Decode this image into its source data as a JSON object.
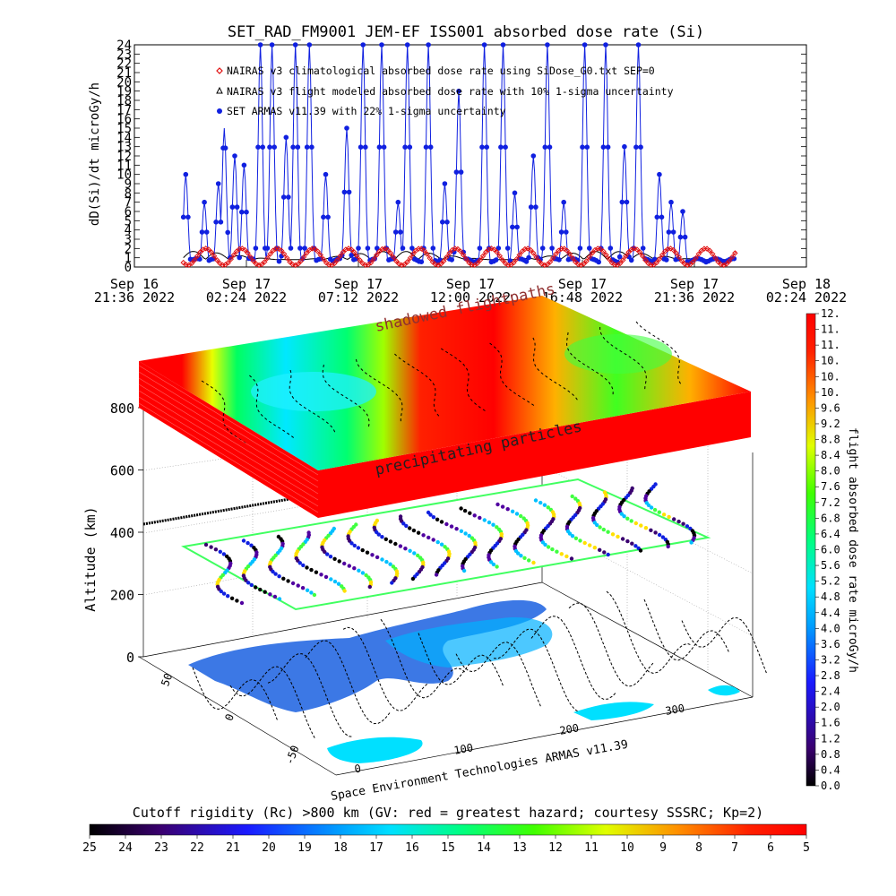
{
  "title": "SET_RAD_FM9001  JEM-EF ISS001 absorbed dose rate (Si)",
  "colors": {
    "nairas_clim": "#e01010",
    "nairas_flight": "#000000",
    "armas": "#1020e0",
    "axis": "#000000"
  },
  "chart_data": [
    {
      "type": "line",
      "title": "SET_RAD_FM9001  JEM-EF ISS001 absorbed dose rate (Si)",
      "ylabel": "dD(Si)/dt microGy/h",
      "xlabel": "",
      "ylim": [
        0,
        24
      ],
      "yticks": [
        "0",
        "1",
        "2",
        "3",
        "4",
        "5",
        "6",
        "7",
        "8",
        "9",
        "10",
        "11",
        "12",
        "13",
        "14",
        "15",
        "16",
        "17",
        "18",
        "19",
        "20",
        "21",
        "22",
        "23",
        "24"
      ],
      "xticks": [
        {
          "line1": "Sep 16",
          "line2": "21:36 2022"
        },
        {
          "line1": "Sep 17",
          "line2": "02:24 2022"
        },
        {
          "line1": "Sep 17",
          "line2": "07:12 2022"
        },
        {
          "line1": "Sep 17",
          "line2": "12:00 2022"
        },
        {
          "line1": "Sep 17",
          "line2": "16:48 2022"
        },
        {
          "line1": "Sep 17",
          "line2": "21:36 2022"
        },
        {
          "line1": "Sep 18",
          "line2": "02:24 2022"
        }
      ],
      "legend_position": "top-left",
      "series": [
        {
          "name": "NAIRAS v3 climatological absorbed dose rate using SiDose_G0.txt SEP=0",
          "marker": "diamond",
          "period_hours": 1.53,
          "min": 0.2,
          "max": 2.0
        },
        {
          "name": "NAIRAS v3 flight modeled absorbed dose rate with 10% 1-sigma uncertainty",
          "marker": "triangle",
          "baseline": 0.8,
          "max": 2.6
        },
        {
          "name": "SET ARMAS v11.39 with 22% 1-sigma uncertainty",
          "marker": "dot",
          "spike_hours": [
            0.4,
            0.9,
            1.2,
            1.7,
            2.2,
            3.0,
            3.6,
            3.85,
            4.3,
            4.7,
            5.4,
            5.9,
            6.5,
            6.9,
            7.5,
            8.2,
            9.1,
            9.8,
            10.6,
            11.3,
            11.7,
            12.6,
            13.3,
            13.9,
            15.0,
            15.8,
            16.3,
            17.1,
            17.7,
            18.4,
            19.3,
            20.2,
            21.0,
            21.6,
            22.5,
            23.0,
            23.5
          ],
          "spike_values": [
            6,
            12,
            7,
            11,
            10,
            7,
            9,
            15,
            12,
            11,
            24,
            24,
            14,
            24,
            24,
            10,
            15,
            24,
            24,
            7,
            24,
            24,
            9,
            19,
            24,
            24,
            8,
            12,
            24,
            7,
            24,
            24,
            13,
            24,
            10,
            7,
            6
          ]
        }
      ],
      "x_range_hours": [
        0,
        28.8
      ],
      "data_start_hour": 2.1,
      "data_end_hour": 25.8
    },
    {
      "type": "heatmap",
      "ylabel": "Altitude (km)",
      "zticks": [
        "0",
        "200",
        "400",
        "600",
        "800"
      ],
      "lat_ticks": [
        "50",
        "0",
        "-50"
      ],
      "lon_ticks": [
        "0",
        "100",
        "200",
        "300"
      ],
      "annotations": [
        "shadowed flightpaths",
        "precipitating particles"
      ],
      "credit": "Space Environment Technologies ARMAS v11.39",
      "colorbar_right": {
        "label": "flight absorbed dose rate microGy/h",
        "ticks": [
          "0.0",
          "0.4",
          "0.8",
          "1.2",
          "1.6",
          "2.0",
          "2.4",
          "2.8",
          "3.2",
          "3.6",
          "4.0",
          "4.4",
          "4.8",
          "5.2",
          "5.6",
          "6.0",
          "6.4",
          "6.8",
          "7.2",
          "7.6",
          "8.0",
          "8.4",
          "8.8",
          "9.2",
          "9.6",
          "10.",
          "10.",
          "10.",
          "11.",
          "11.",
          "12."
        ]
      },
      "colorbar_bottom": {
        "label": "Cutoff rigidity (Rc) >800 km (GV: red = greatest hazard; courtesy SSSRC; Kp=2)",
        "ticks": [
          "25",
          "24",
          "23",
          "22",
          "21",
          "20",
          "19",
          "18",
          "17",
          "16",
          "15",
          "14",
          "13",
          "12",
          "11",
          "10",
          "9",
          "8",
          "7",
          "6",
          "5"
        ]
      }
    }
  ]
}
